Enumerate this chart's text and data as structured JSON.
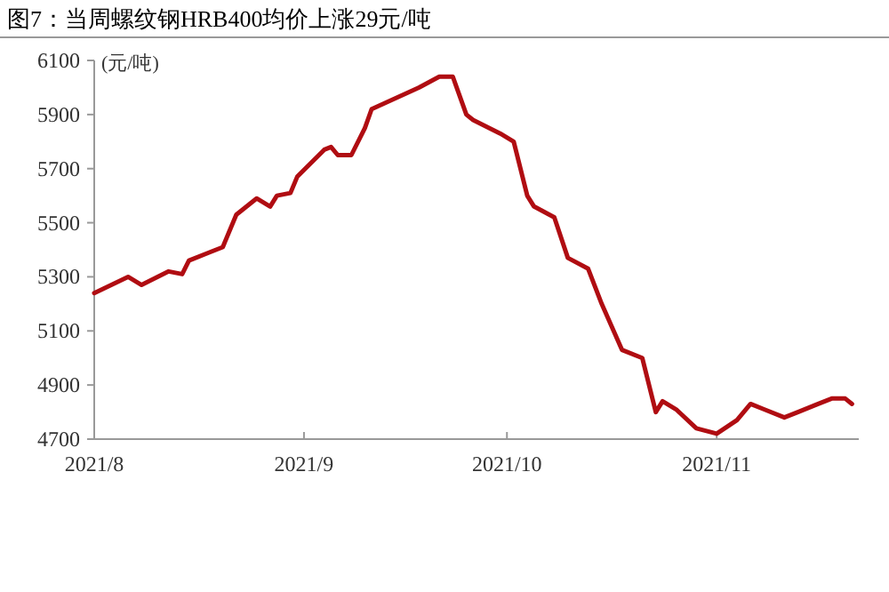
{
  "chart_data": {
    "type": "line",
    "title": "图7：当周螺纹钢HRB400均价上涨29元/吨",
    "ylabel": "(元/吨)",
    "x": [
      "2021-08-01",
      "2021-08-06",
      "2021-08-08",
      "2021-08-12",
      "2021-08-14",
      "2021-08-15",
      "2021-08-18",
      "2021-08-20",
      "2021-08-22",
      "2021-08-25",
      "2021-08-27",
      "2021-08-28",
      "2021-08-30",
      "2021-08-31",
      "2021-09-04",
      "2021-09-05",
      "2021-09-06",
      "2021-09-08",
      "2021-09-10",
      "2021-09-11",
      "2021-09-18",
      "2021-09-21",
      "2021-09-23",
      "2021-09-25",
      "2021-09-26",
      "2021-09-30",
      "2021-10-02",
      "2021-10-04",
      "2021-10-05",
      "2021-10-08",
      "2021-10-10",
      "2021-10-13",
      "2021-10-15",
      "2021-10-18",
      "2021-10-21",
      "2021-10-23",
      "2021-10-24",
      "2021-10-26",
      "2021-10-29",
      "2021-11-01",
      "2021-11-04",
      "2021-11-06",
      "2021-11-08",
      "2021-11-11",
      "2021-11-13",
      "2021-11-16",
      "2021-11-18",
      "2021-11-20",
      "2021-11-21"
    ],
    "series": [
      {
        "color": "#b00d12",
        "values": [
          5240,
          5300,
          5270,
          5320,
          5310,
          5360,
          5390,
          5410,
          5530,
          5590,
          5560,
          5600,
          5610,
          5670,
          5770,
          5780,
          5750,
          5750,
          5850,
          5920,
          6000,
          6040,
          6040,
          5900,
          5880,
          5830,
          5800,
          5600,
          5560,
          5520,
          5370,
          5330,
          5200,
          5030,
          5000,
          4800,
          4840,
          4810,
          4740,
          4720,
          4770,
          4830,
          4810,
          4780,
          4800,
          4830,
          4850,
          4850,
          4830
        ]
      }
    ],
    "xlim": [
      "2021-08-01",
      "2021-11-22"
    ],
    "xticks": [
      {
        "value": "2021-08-01",
        "label": "2021/8"
      },
      {
        "value": "2021-09-01",
        "label": "2021/9"
      },
      {
        "value": "2021-10-01",
        "label": "2021/10"
      },
      {
        "value": "2021-11-01",
        "label": "2021/11"
      }
    ],
    "ylim": [
      4700,
      6100
    ],
    "yticks": [
      4700,
      4900,
      5100,
      5300,
      5500,
      5700,
      5900,
      6100
    ],
    "grid": false,
    "marker": "none",
    "line_style": "solid"
  }
}
